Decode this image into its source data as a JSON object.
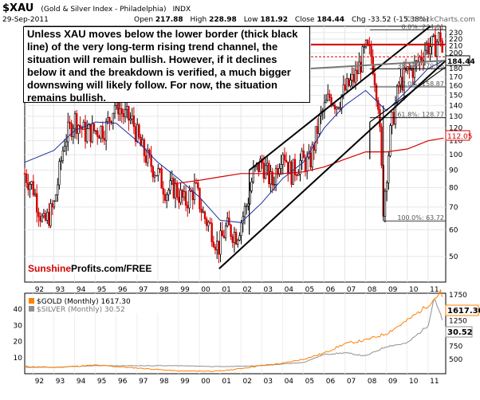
{
  "header": {
    "ticker": "$XAU",
    "name": "(Gold & Silver Index - Philadelphia)",
    "exchange": "INDX",
    "date": "29-Sep-2011",
    "open_label": "Open",
    "open": "217.88",
    "high_label": "High",
    "high": "228.98",
    "low_label": "Low",
    "low": "181.92",
    "close_label": "Close",
    "close": "184.44",
    "chg_label": "Chg",
    "chg": "-33.52 (-15.38%)",
    "watermark": "© StockCharts.com"
  },
  "annotation": "Unless XAU moves below the lower border (thick black line) of the very long-term rising trend channel, the situation will remain bullish. However, if it declines below it and the breakdown is verified, a much bigger downswing will likely follow. For now, the situation remains bullish.",
  "brand": {
    "part1": "Sunshine",
    "part2": "Profits.com/FREE"
  },
  "x_labels": [
    "92",
    "93",
    "94",
    "95",
    "96",
    "97",
    "98",
    "99",
    "00",
    "01",
    "02",
    "03",
    "04",
    "05",
    "06",
    "07",
    "08",
    "09",
    "10",
    "11"
  ],
  "colors": {
    "candle_up": "#000000",
    "candle_down": "#d40000",
    "ma_blue": "#1e2f9c",
    "ma_red": "#d40000",
    "gold": "#ff7f00",
    "silver": "#909090",
    "fib": "#555555"
  },
  "chart_data": [
    {
      "type": "candlestick",
      "title": "$XAU (Gold & Silver Index - Philadelphia)",
      "y_scale": "log",
      "y_ticks": [
        50,
        60,
        70,
        80,
        90,
        100,
        110,
        120,
        130,
        140,
        150,
        160,
        170,
        180,
        190,
        200,
        210,
        220,
        230
      ],
      "ylim": [
        42,
        240
      ],
      "last_value_label": "184.44",
      "ma_value_label": "112.05",
      "fib_levels": [
        {
          "label": "0.0%: 234.01",
          "value": 234.01
        },
        {
          "label": "38.2%: 179.66",
          "value": 179.66
        },
        {
          "label": "50.0%: 158.87",
          "value": 158.87
        },
        {
          "label": "61.8%: 128.77",
          "value": 128.77
        },
        {
          "label": "100.0%: 63.72",
          "value": 63.72
        }
      ],
      "series": [
        {
          "name": "XAU monthly",
          "years": [
            1991.6,
            1992,
            1992.5,
            1993,
            1993.5,
            1994,
            1994.5,
            1995,
            1995.5,
            1996,
            1996.3,
            1996.8,
            1997.2,
            1997.6,
            1998,
            1998.4,
            1998.8,
            1999.3,
            1999.8,
            2000.2,
            2000.6,
            2000.9,
            2001.3,
            2001.8,
            2002.3,
            2002.6,
            2003,
            2003.5,
            2004,
            2004.4,
            2004.9,
            2005.3,
            2005.8,
            2006.3,
            2006.6,
            2007,
            2007.5,
            2008,
            2008.3,
            2008.6,
            2008.85,
            2009.2,
            2009.6,
            2010,
            2010.4,
            2010.9,
            2011.3,
            2011.6,
            2011.75
          ],
          "values": [
            88,
            80,
            62,
            70,
            110,
            128,
            116,
            118,
            120,
            145,
            132,
            125,
            105,
            95,
            88,
            78,
            80,
            72,
            80,
            66,
            60,
            53,
            61,
            58,
            72,
            88,
            95,
            82,
            105,
            88,
            96,
            94,
            128,
            150,
            142,
            155,
            170,
            205,
            195,
            145,
            70,
            118,
            160,
            175,
            182,
            210,
            210,
            225,
            184.44
          ]
        },
        {
          "name": "blue moving average",
          "years": [
            1991.6,
            1993,
            1994,
            1995,
            1996,
            1997,
            1998,
            1999,
            2000,
            2001,
            2002,
            2003,
            2004,
            2005,
            2006,
            2007,
            2008,
            2009,
            2010,
            2011,
            2011.75
          ],
          "values": [
            95,
            103,
            118,
            125,
            124,
            110,
            95,
            85,
            75,
            64,
            63,
            72,
            85,
            95,
            120,
            140,
            155,
            135,
            155,
            180,
            190
          ]
        },
        {
          "name": "red moving average",
          "years": [
            1998.7,
            2000,
            2001,
            2002,
            2003,
            2004,
            2005,
            2006,
            2007,
            2008,
            2009,
            2010,
            2011,
            2011.75
          ],
          "values": [
            82,
            84,
            86,
            88,
            88,
            88,
            89,
            92,
            97,
            102,
            102,
            104,
            110,
            112.05
          ]
        }
      ]
    },
    {
      "type": "line",
      "series": [
        {
          "name": "$GOLD (Monthly) 1617.30",
          "last": "1617.30"
        },
        {
          "name": "$SILVER (Monthly) 30.52",
          "last": "30.52"
        }
      ],
      "left_ticks": [
        10,
        20,
        30,
        40
      ],
      "right_ticks": [
        500,
        750,
        1000,
        1250,
        1500,
        1750
      ],
      "gold_years": [
        1991.6,
        1993,
        1995,
        1997,
        1999,
        2001,
        2002,
        2003,
        2004,
        2005,
        2006,
        2007,
        2008,
        2009,
        2010,
        2011,
        2011.6,
        2011.75
      ],
      "gold_values": [
        360,
        340,
        385,
        330,
        270,
        270,
        320,
        380,
        420,
        500,
        620,
        800,
        870,
        1000,
        1250,
        1550,
        1800,
        1617.3
      ],
      "silver_years": [
        1991.6,
        1993,
        1995,
        1997,
        1999,
        2001,
        2002,
        2003,
        2004,
        2005,
        2006,
        2007,
        2008,
        2009,
        2010,
        2011,
        2011.3,
        2011.75
      ],
      "silver_values": [
        4,
        4,
        5,
        5,
        5,
        4.4,
        4.7,
        5,
        6,
        7,
        12,
        13,
        11,
        17,
        19,
        30,
        48,
        30.52
      ]
    }
  ]
}
